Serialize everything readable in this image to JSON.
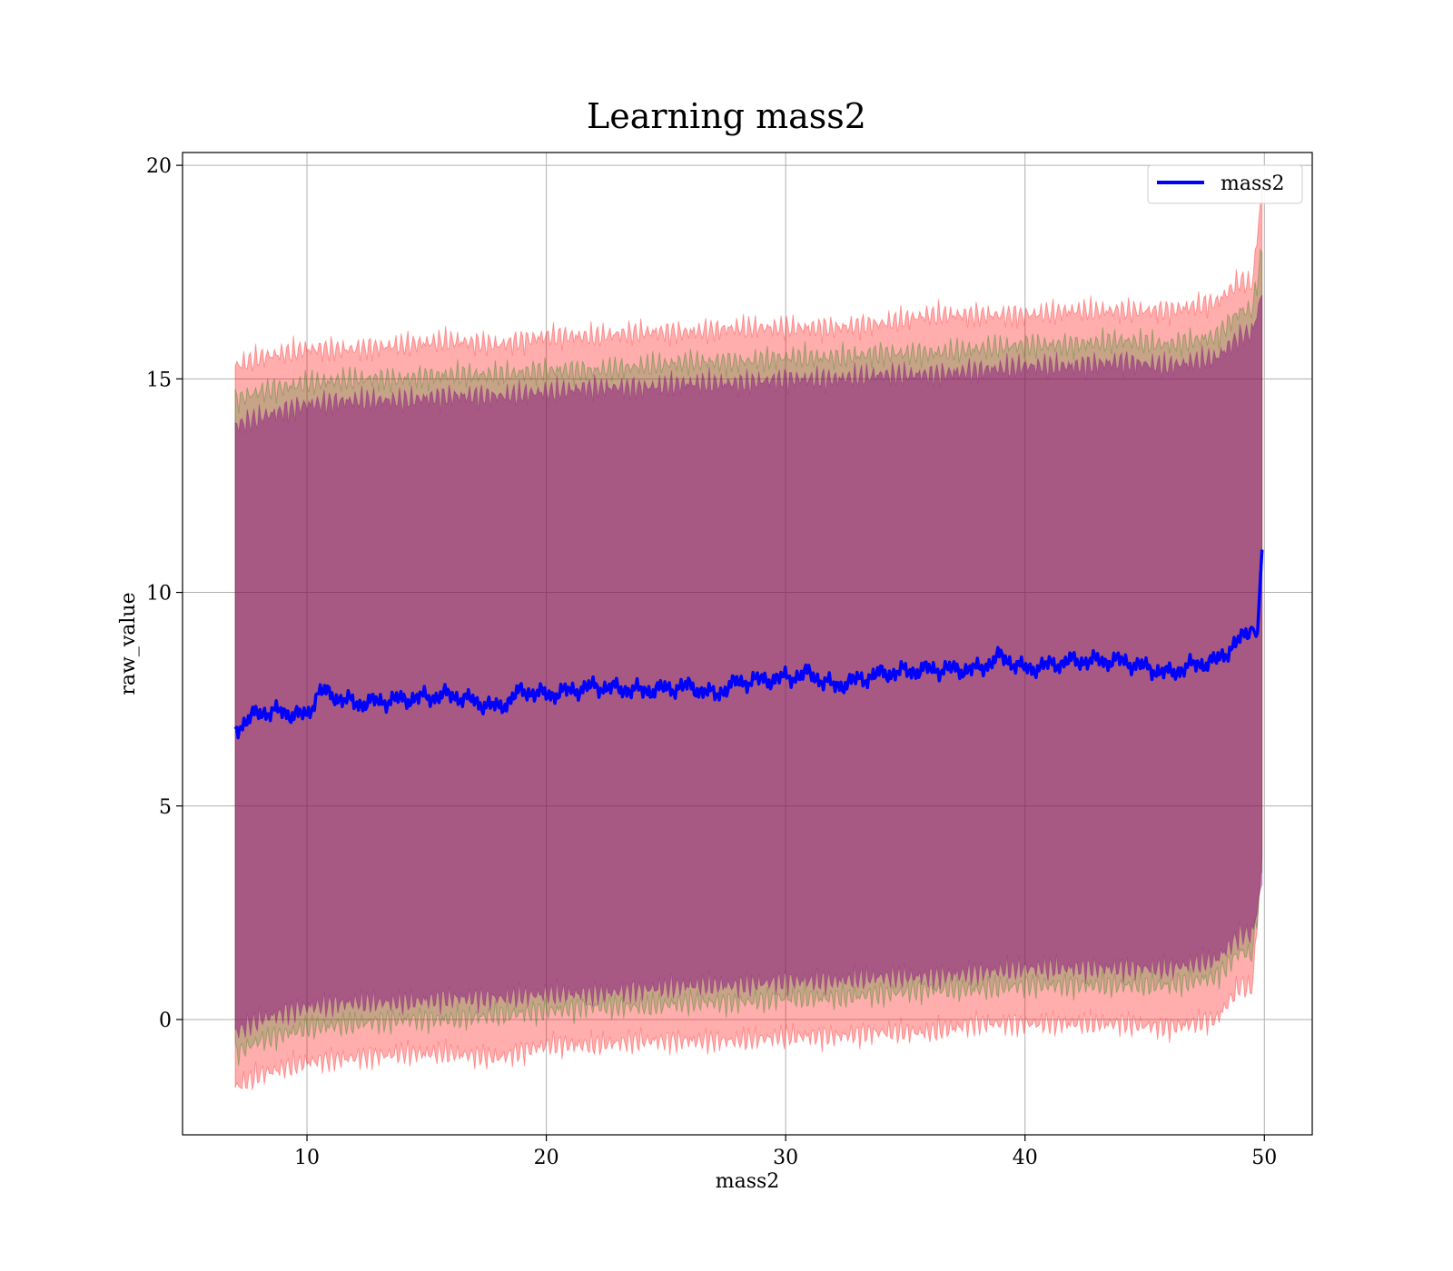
{
  "chart_data": {
    "type": "line",
    "title": "Learning mass2",
    "xlabel": "mass2",
    "ylabel": "raw_value",
    "xlim": [
      4.8,
      52.0
    ],
    "ylim": [
      -2.7,
      20.3
    ],
    "xticks": [
      10,
      20,
      30,
      40,
      50
    ],
    "yticks": [
      0,
      5,
      10,
      15,
      20
    ],
    "grid": true,
    "legend_position": "top-right",
    "series": [
      {
        "name": "mass2",
        "color": "#0000ff",
        "x": [
          7.0,
          8.0,
          9.0,
          10.0,
          10.5,
          12.0,
          14.0,
          16.0,
          18.0,
          19.0,
          20.0,
          22.0,
          24.0,
          26.0,
          27.0,
          28.0,
          30.0,
          31.0,
          32.0,
          34.0,
          36.0,
          38.0,
          39.0,
          40.0,
          42.0,
          44.0,
          46.0,
          47.0,
          48.0,
          49.0,
          49.5,
          49.7,
          49.9
        ],
        "y": [
          6.8,
          7.2,
          7.2,
          7.1,
          7.7,
          7.4,
          7.5,
          7.6,
          7.3,
          7.7,
          7.6,
          7.8,
          7.7,
          7.8,
          7.6,
          7.9,
          8.0,
          8.1,
          7.8,
          8.1,
          8.2,
          8.2,
          8.5,
          8.2,
          8.4,
          8.4,
          8.1,
          8.3,
          8.4,
          8.9,
          9.2,
          8.9,
          11.0
        ]
      }
    ],
    "bands": [
      {
        "color": "#ff0000",
        "opacity": 0.32,
        "x": [
          7.0,
          8.0,
          10.0,
          12.0,
          14.0,
          16.0,
          18.0,
          20.0,
          22.0,
          24.0,
          26.0,
          28.0,
          30.0,
          32.0,
          34.0,
          36.0,
          38.0,
          40.0,
          42.0,
          44.0,
          46.0,
          48.0,
          49.0,
          49.5,
          49.9
        ],
        "upper": [
          15.3,
          15.5,
          15.7,
          15.7,
          15.8,
          15.9,
          15.8,
          16.0,
          16.0,
          16.1,
          16.1,
          16.2,
          16.2,
          16.2,
          16.3,
          16.5,
          16.5,
          16.5,
          16.6,
          16.6,
          16.6,
          16.8,
          17.3,
          17.2,
          19.5
        ],
        "lower": [
          -1.6,
          -1.3,
          -1.0,
          -0.9,
          -0.8,
          -0.8,
          -0.9,
          -0.6,
          -0.6,
          -0.5,
          -0.5,
          -0.5,
          -0.4,
          -0.4,
          -0.3,
          -0.3,
          -0.1,
          -0.1,
          -0.1,
          -0.1,
          -0.2,
          0.0,
          0.8,
          0.7,
          3.8
        ]
      },
      {
        "color": "#008000",
        "opacity": 0.22,
        "x": [
          7.0,
          8.0,
          10.0,
          12.0,
          14.0,
          16.0,
          18.0,
          20.0,
          22.0,
          24.0,
          26.0,
          28.0,
          30.0,
          32.0,
          34.0,
          36.0,
          38.0,
          40.0,
          42.0,
          44.0,
          46.0,
          48.0,
          49.0,
          49.5,
          49.9
        ],
        "upper": [
          14.5,
          14.7,
          14.9,
          15.0,
          15.0,
          15.1,
          15.1,
          15.2,
          15.2,
          15.3,
          15.4,
          15.4,
          15.5,
          15.5,
          15.6,
          15.6,
          15.7,
          15.8,
          15.8,
          15.9,
          15.8,
          16.0,
          16.6,
          16.6,
          18.0
        ],
        "lower": [
          -0.8,
          -0.5,
          -0.2,
          -0.1,
          0.0,
          0.0,
          0.1,
          0.2,
          0.3,
          0.3,
          0.4,
          0.4,
          0.5,
          0.5,
          0.6,
          0.7,
          0.7,
          0.8,
          0.8,
          0.8,
          0.8,
          1.0,
          1.6,
          1.5,
          3.5
        ]
      },
      {
        "color": "#800080",
        "opacity": 0.45,
        "x": [
          7.0,
          8.0,
          10.0,
          12.0,
          14.0,
          16.0,
          18.0,
          20.0,
          22.0,
          24.0,
          26.0,
          28.0,
          30.0,
          32.0,
          34.0,
          36.0,
          38.0,
          40.0,
          42.0,
          44.0,
          46.0,
          48.0,
          49.0,
          49.5,
          49.9
        ],
        "upper": [
          13.9,
          14.1,
          14.4,
          14.5,
          14.5,
          14.6,
          14.6,
          14.7,
          14.8,
          14.8,
          14.9,
          14.9,
          15.0,
          15.0,
          15.1,
          15.1,
          15.2,
          15.3,
          15.3,
          15.4,
          15.3,
          15.5,
          16.0,
          16.1,
          17.0
        ],
        "lower": [
          -0.3,
          0.0,
          0.3,
          0.4,
          0.4,
          0.5,
          0.5,
          0.6,
          0.6,
          0.7,
          0.8,
          0.8,
          0.9,
          0.9,
          1.0,
          1.0,
          1.1,
          1.2,
          1.2,
          1.2,
          1.2,
          1.4,
          2.0,
          2.0,
          3.2
        ]
      }
    ]
  }
}
